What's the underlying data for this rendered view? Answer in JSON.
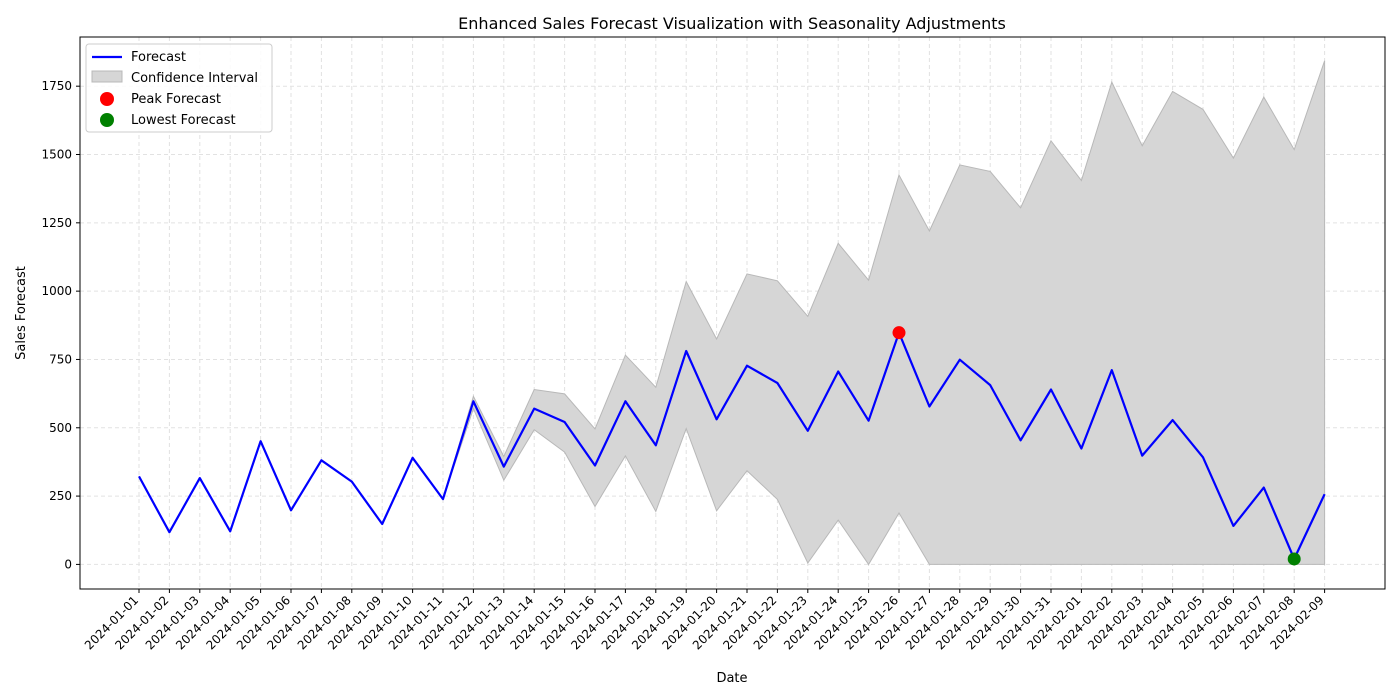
{
  "chart_data": {
    "type": "line",
    "title": "Enhanced Sales Forecast Visualization with Seasonality Adjustments",
    "xlabel": "Date",
    "ylabel": "Sales Forecast",
    "x": [
      "2024-01-01",
      "2024-01-02",
      "2024-01-03",
      "2024-01-04",
      "2024-01-05",
      "2024-01-06",
      "2024-01-07",
      "2024-01-08",
      "2024-01-09",
      "2024-01-10",
      "2024-01-11",
      "2024-01-12",
      "2024-01-13",
      "2024-01-14",
      "2024-01-15",
      "2024-01-16",
      "2024-01-17",
      "2024-01-18",
      "2024-01-19",
      "2024-01-20",
      "2024-01-21",
      "2024-01-22",
      "2024-01-23",
      "2024-01-24",
      "2024-01-25",
      "2024-01-26",
      "2024-01-27",
      "2024-01-28",
      "2024-01-29",
      "2024-01-30",
      "2024-01-31",
      "2024-02-01",
      "2024-02-02",
      "2024-02-03",
      "2024-02-04",
      "2024-02-05",
      "2024-02-06",
      "2024-02-07",
      "2024-02-08",
      "2024-02-09"
    ],
    "forecast": [
      322,
      118,
      316,
      121,
      451,
      198,
      381,
      303,
      148,
      390,
      239,
      597,
      358,
      570,
      521,
      362,
      597,
      436,
      781,
      531,
      727,
      664,
      489,
      706,
      526,
      848,
      578,
      749,
      656,
      454,
      640,
      424,
      711,
      398,
      528,
      392,
      141,
      281,
      20,
      257
    ],
    "ci_lower": [
      322,
      118,
      316,
      121,
      451,
      198,
      381,
      303,
      148,
      390,
      239,
      570,
      308,
      493,
      411,
      212,
      397,
      194,
      497,
      196,
      343,
      238,
      5,
      162,
      0,
      188,
      0,
      0,
      0,
      0,
      0,
      0,
      0,
      0,
      0,
      0,
      0,
      0,
      0,
      0
    ],
    "ci_upper": [
      322,
      118,
      316,
      121,
      451,
      198,
      381,
      303,
      148,
      390,
      239,
      615,
      395,
      640,
      624,
      496,
      766,
      648,
      1035,
      825,
      1063,
      1038,
      908,
      1175,
      1040,
      1425,
      1220,
      1462,
      1438,
      1305,
      1550,
      1405,
      1765,
      1532,
      1731,
      1665,
      1487,
      1710,
      1518,
      1843
    ],
    "peak": {
      "x": "2024-01-26",
      "y": 848
    },
    "lowest": {
      "x": "2024-02-08",
      "y": 20
    },
    "yticks": [
      0,
      250,
      500,
      750,
      1000,
      1250,
      1500,
      1750
    ],
    "ylim": [
      -90,
      1930
    ],
    "grid": true,
    "legend_position": "top-left",
    "legend": [
      "Forecast",
      "Confidence Interval",
      "Peak Forecast",
      "Lowest Forecast"
    ],
    "colors": {
      "forecast": "#0000ff",
      "ci": "#d6d6d6",
      "ci_edge": "#b8b8b8",
      "peak": "#ff0000",
      "lowest": "#008000",
      "grid": "#e2e2e2"
    }
  }
}
